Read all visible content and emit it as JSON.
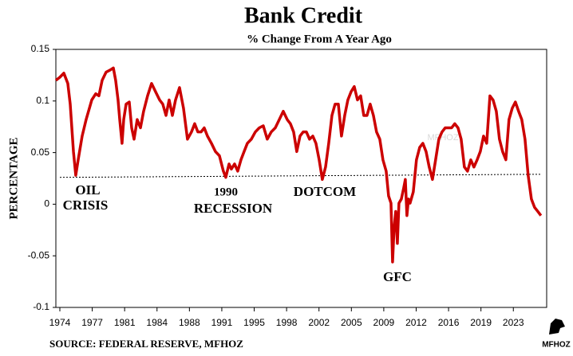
{
  "chart_data": {
    "type": "line",
    "title": "Bank Credit",
    "subtitle": "% Change From A Year Ago",
    "y_label": "PERCENTAGE",
    "source": "SOURCE: FEDERAL RESERVE, MFHOZ",
    "watermark": "MFHOZ",
    "logo_text": "MFHOZ",
    "annotations": [
      "OIL",
      "CRISIS",
      "1990",
      "RECESSION",
      "DOTCOM",
      "GFC"
    ],
    "xlim": [
      1973.57,
      2026.6
    ],
    "ylim": [
      -0.1,
      0.15
    ],
    "yticks": [
      0.15,
      0.1,
      0.05,
      0,
      -0.05,
      -0.1
    ],
    "xticks": [
      1974,
      {
        "value": 1977.5,
        "label": "1977"
      },
      1981,
      {
        "value": 1984.5,
        "label": "1984"
      },
      1988,
      {
        "value": 1991.5,
        "label": "1991"
      },
      1995,
      {
        "value": 1998.5,
        "label": "1998"
      },
      2002,
      {
        "value": 2005.5,
        "label": "2005"
      },
      2009,
      {
        "value": 2012.5,
        "label": "2012"
      },
      2016,
      {
        "value": 2019.5,
        "label": "2019"
      },
      2023
    ],
    "reference_line": {
      "x": [
        1974,
        2026
      ],
      "values": [
        0.026,
        0.029
      ],
      "color": "#000000"
    },
    "series": [
      {
        "color": "#cc0000",
        "x": [
          1973.57,
          1974.0,
          1974.43,
          1974.86,
          1975.12,
          1975.47,
          1975.72,
          1975.98,
          1976.41,
          1976.84,
          1977.45,
          1977.88,
          1978.22,
          1978.57,
          1979.0,
          1979.43,
          1979.78,
          1980.03,
          1980.29,
          1980.47,
          1980.72,
          1980.9,
          1981.16,
          1981.5,
          1981.76,
          1982.02,
          1982.36,
          1982.71,
          1983.05,
          1983.48,
          1983.91,
          1984.34,
          1984.78,
          1985.12,
          1985.47,
          1985.81,
          1986.16,
          1986.5,
          1986.93,
          1987.36,
          1987.79,
          1988.22,
          1988.57,
          1988.91,
          1989.26,
          1989.6,
          1989.95,
          1990.38,
          1990.81,
          1991.24,
          1991.67,
          1991.93,
          1992.28,
          1992.53,
          1992.88,
          1993.22,
          1993.57,
          1993.91,
          1994.26,
          1994.69,
          1995.12,
          1995.55,
          1995.98,
          1996.41,
          1996.84,
          1997.28,
          1997.71,
          1998.14,
          1998.57,
          1998.91,
          1999.26,
          1999.6,
          1999.95,
          2000.29,
          2000.64,
          2000.98,
          2001.33,
          2001.67,
          2002.02,
          2002.36,
          2002.71,
          2003.05,
          2003.4,
          2003.74,
          2004.09,
          2004.43,
          2004.78,
          2005.12,
          2005.47,
          2005.81,
          2006.16,
          2006.5,
          2006.84,
          2007.19,
          2007.53,
          2007.88,
          2008.22,
          2008.57,
          2008.91,
          2009.26,
          2009.52,
          2009.78,
          2009.95,
          2010.12,
          2010.29,
          2010.47,
          2010.64,
          2010.9,
          2011.16,
          2011.33,
          2011.5,
          2011.67,
          2011.84,
          2012.19,
          2012.53,
          2012.88,
          2013.22,
          2013.57,
          2013.91,
          2014.26,
          2014.6,
          2014.95,
          2015.29,
          2015.64,
          2015.98,
          2016.33,
          2016.67,
          2017.02,
          2017.36,
          2017.71,
          2018.05,
          2018.4,
          2018.74,
          2019.09,
          2019.43,
          2019.78,
          2020.12,
          2020.47,
          2020.81,
          2021.16,
          2021.5,
          2021.84,
          2022.19,
          2022.53,
          2022.88,
          2023.22,
          2023.57,
          2023.91,
          2024.26,
          2024.6,
          2024.95,
          2025.29,
          2025.64,
          2025.98
        ],
        "values": [
          0.12,
          0.123,
          0.127,
          0.117,
          0.097,
          0.051,
          0.028,
          0.043,
          0.066,
          0.082,
          0.101,
          0.107,
          0.105,
          0.12,
          0.128,
          0.13,
          0.132,
          0.12,
          0.101,
          0.082,
          0.059,
          0.082,
          0.097,
          0.099,
          0.074,
          0.063,
          0.082,
          0.074,
          0.09,
          0.105,
          0.117,
          0.109,
          0.101,
          0.097,
          0.086,
          0.101,
          0.086,
          0.101,
          0.113,
          0.093,
          0.063,
          0.07,
          0.078,
          0.07,
          0.07,
          0.074,
          0.066,
          0.059,
          0.051,
          0.047,
          0.032,
          0.026,
          0.039,
          0.034,
          0.039,
          0.032,
          0.043,
          0.051,
          0.059,
          0.063,
          0.07,
          0.074,
          0.076,
          0.063,
          0.07,
          0.074,
          0.082,
          0.09,
          0.082,
          0.078,
          0.07,
          0.051,
          0.066,
          0.07,
          0.07,
          0.063,
          0.066,
          0.059,
          0.043,
          0.024,
          0.036,
          0.059,
          0.086,
          0.097,
          0.097,
          0.066,
          0.086,
          0.101,
          0.109,
          0.114,
          0.101,
          0.105,
          0.086,
          0.086,
          0.097,
          0.086,
          0.07,
          0.063,
          0.043,
          0.032,
          0.008,
          0.001,
          -0.056,
          -0.022,
          -0.007,
          -0.038,
          0.001,
          0.005,
          0.016,
          0.024,
          -0.011,
          0.005,
          0.001,
          0.012,
          0.043,
          0.055,
          0.059,
          0.051,
          0.036,
          0.024,
          0.043,
          0.063,
          0.07,
          0.074,
          0.074,
          0.074,
          0.078,
          0.074,
          0.063,
          0.036,
          0.032,
          0.043,
          0.036,
          0.043,
          0.051,
          0.066,
          0.059,
          0.105,
          0.101,
          0.09,
          0.063,
          0.051,
          0.043,
          0.082,
          0.093,
          0.099,
          0.09,
          0.082,
          0.063,
          0.028,
          0.005,
          -0.003,
          -0.007,
          -0.011
        ]
      }
    ]
  }
}
